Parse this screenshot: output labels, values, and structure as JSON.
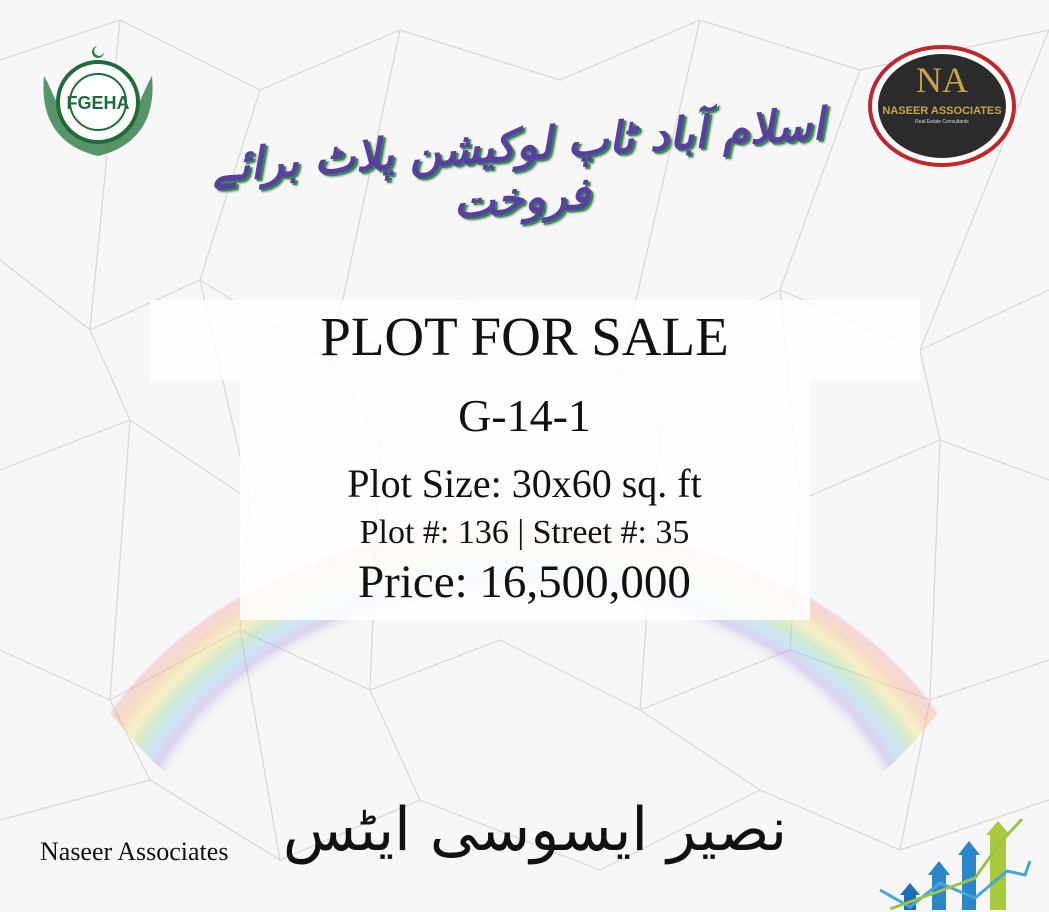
{
  "header": {
    "left_logo": {
      "text": "FGEHA",
      "color": "#1f6b3a"
    },
    "right_logo": {
      "initials": "NA",
      "name": "NASEER ASSOCIATES",
      "tagline": "Real Estate Consultants",
      "ring_color": "#c0272d",
      "bg_color": "#2b2b2b",
      "text_color": "#c9a64a"
    },
    "urdu_title": "اسلام آباد ٹاپ لوکیشن پلاٹ برائے فروخت"
  },
  "main": {
    "headline": "PLOT FOR SALE",
    "sector": "G-14-1",
    "plot_size": "Plot Size: 30x60 sq. ft",
    "plot_street": "Plot #: 136 | Street #: 35",
    "price": "Price: 16,500,000"
  },
  "footer": {
    "company": "Naseer Associates",
    "urdu_company": "نصیر ایسوسی ایٹس",
    "chart_icon": "growth-chart-icon"
  }
}
